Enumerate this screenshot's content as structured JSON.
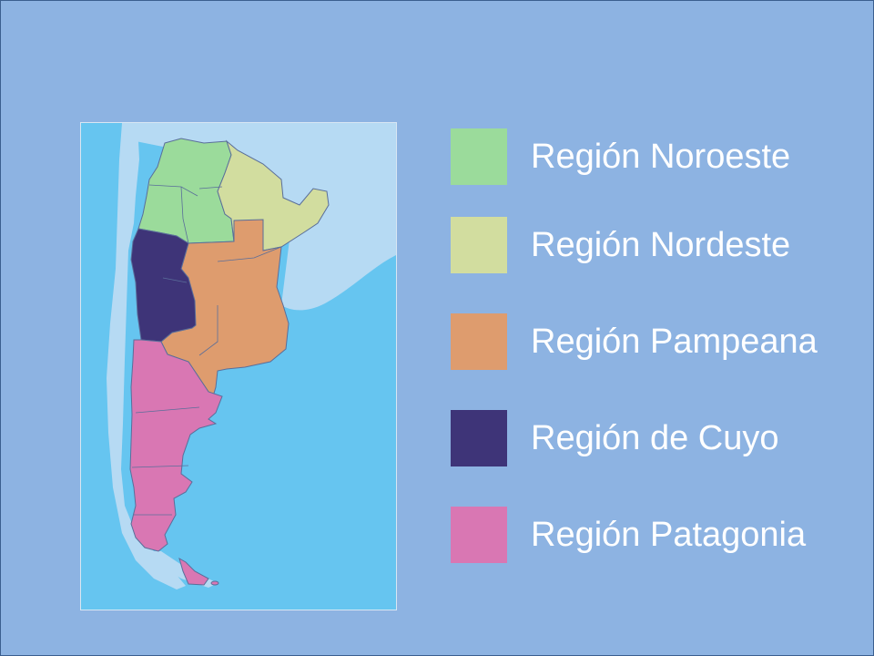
{
  "regions": [
    {
      "id": "noroeste",
      "label": "Región Noroeste",
      "color": "#9BDB9B"
    },
    {
      "id": "nordeste",
      "label": "Región Nordeste",
      "color": "#D2DD9F"
    },
    {
      "id": "pampeana",
      "label": "Región Pampeana",
      "color": "#DE9C6E"
    },
    {
      "id": "cuyo",
      "label": "Región de Cuyo",
      "color": "#3E3478"
    },
    {
      "id": "patagonia",
      "label": "Región Patagonia",
      "color": "#D977B3"
    }
  ],
  "map_colors": {
    "ocean": "#66C5F0",
    "neighbor_land": "#B6DAF3",
    "border": "#5A6E9A"
  }
}
